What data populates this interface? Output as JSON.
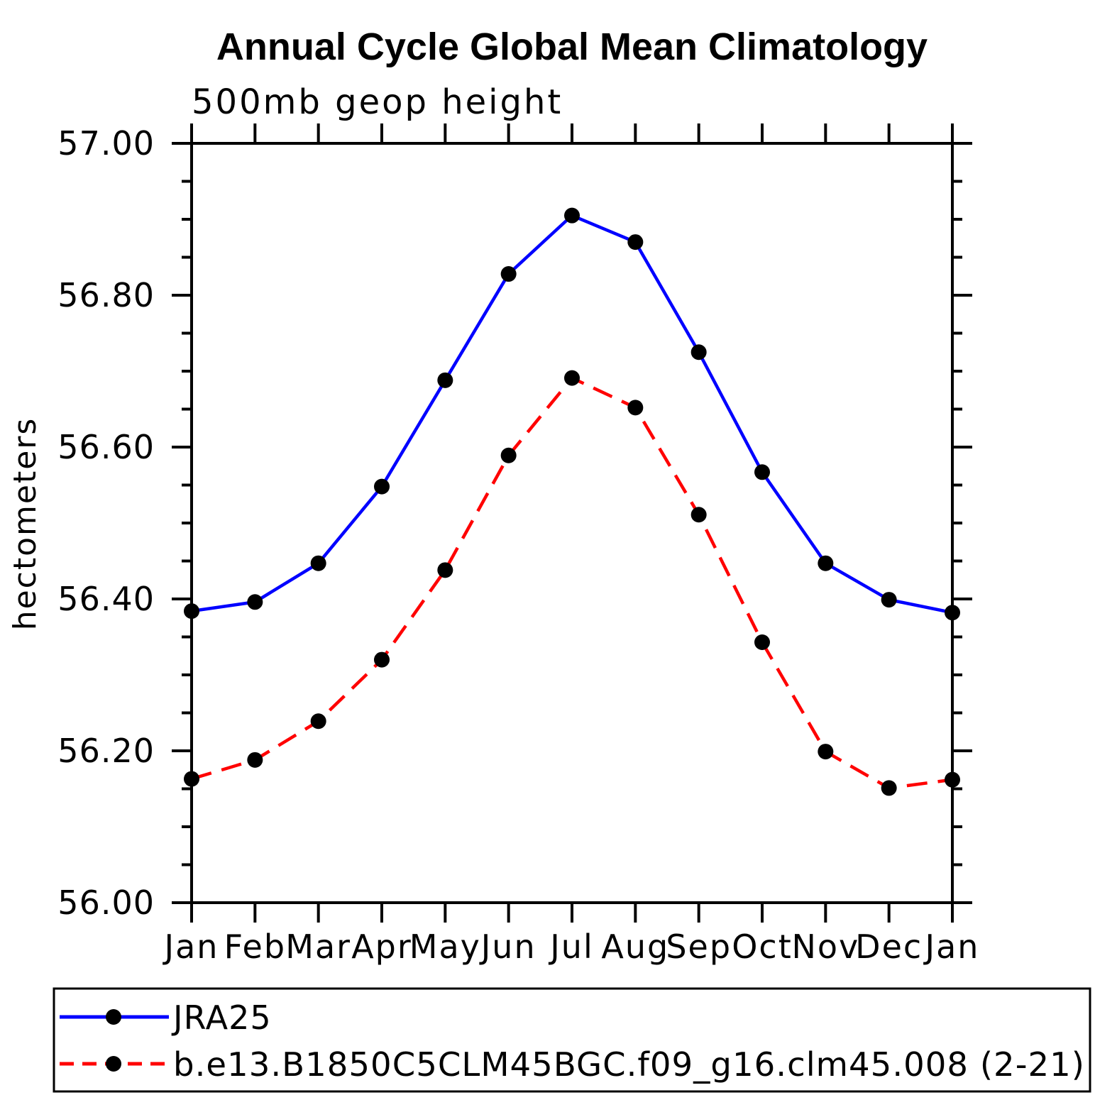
{
  "page": {
    "background": "#ffffff"
  },
  "chart_data": {
    "type": "line",
    "title": "Annual Cycle Global Mean Climatology",
    "subtitle": "500mb geop height",
    "ylabel": "hectometers",
    "xlabel": "",
    "categories": [
      "Jan",
      "Feb",
      "Mar",
      "Apr",
      "May",
      "Jun",
      "Jul",
      "Aug",
      "Sep",
      "Oct",
      "Nov",
      "Dec",
      "Jan"
    ],
    "ylim": [
      56.0,
      57.0
    ],
    "ytick_major": 0.2,
    "ytick_minor": 0.05,
    "ytick_labels": [
      "56.00",
      "56.20",
      "56.40",
      "56.60",
      "56.80",
      "57.00"
    ],
    "grid": false,
    "legend_position": "bottom-left",
    "axis_color": "#000000",
    "marker_color": "#000000",
    "series": [
      {
        "name": "JRA25",
        "color": "#0000ff",
        "line_style": "solid",
        "marker": "filled-circle",
        "values": [
          56.384,
          56.396,
          56.447,
          56.548,
          56.688,
          56.828,
          56.905,
          56.87,
          56.725,
          56.567,
          56.447,
          56.399,
          56.382
        ]
      },
      {
        "name": "b.e13.B1850C5CLM45BGC.f09_g16.clm45.008 (2-21)",
        "color": "#ff0000",
        "line_style": "dashed",
        "marker": "filled-circle",
        "values": [
          56.163,
          56.188,
          56.239,
          56.32,
          56.438,
          56.589,
          56.691,
          56.652,
          56.511,
          56.343,
          56.199,
          56.151,
          56.162
        ]
      }
    ]
  }
}
